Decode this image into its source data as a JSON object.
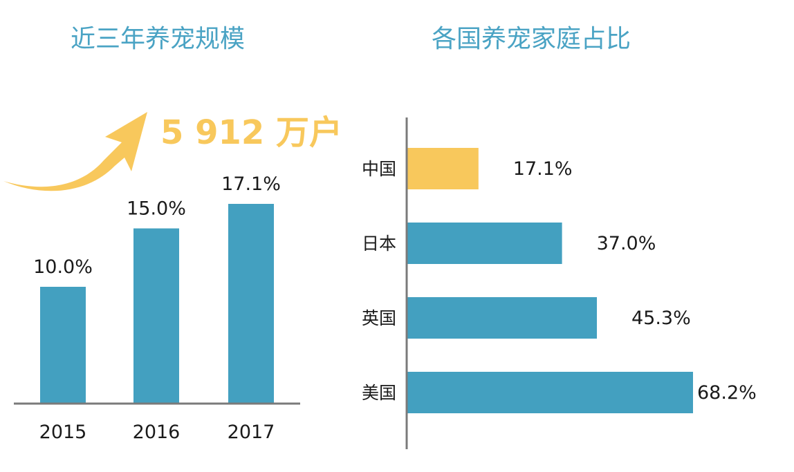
{
  "colors": {
    "bar": "#43a0c0",
    "highlight": "#f8c85c",
    "title": "#4aa3c4",
    "text": "#1a1a1a",
    "axis": "#7a7a7a"
  },
  "chart_data": [
    {
      "type": "bar",
      "title": "近三年养宠规模",
      "categories": [
        "2015",
        "2016",
        "2017"
      ],
      "values": [
        10.0,
        15.0,
        17.1
      ],
      "value_labels": [
        "10.0%",
        "15.0%",
        "17.1%"
      ],
      "xlabel": "",
      "ylabel": "",
      "ylim": [
        0,
        20
      ],
      "grid": false,
      "annotation": {
        "text": "5 912 万户",
        "arrow": "up-right",
        "color": "#f8c85c"
      }
    },
    {
      "type": "bar",
      "orientation": "horizontal",
      "title": "各国养宠家庭占比",
      "categories": [
        "中国",
        "日本",
        "英国",
        "美国"
      ],
      "values": [
        17.1,
        37.0,
        45.3,
        68.2
      ],
      "value_labels": [
        "17.1%",
        "37.0%",
        "45.3%",
        "68.2%"
      ],
      "highlight_category": "中国",
      "xlabel": "",
      "ylabel": "",
      "xlim": [
        0,
        70
      ],
      "grid": false
    }
  ]
}
